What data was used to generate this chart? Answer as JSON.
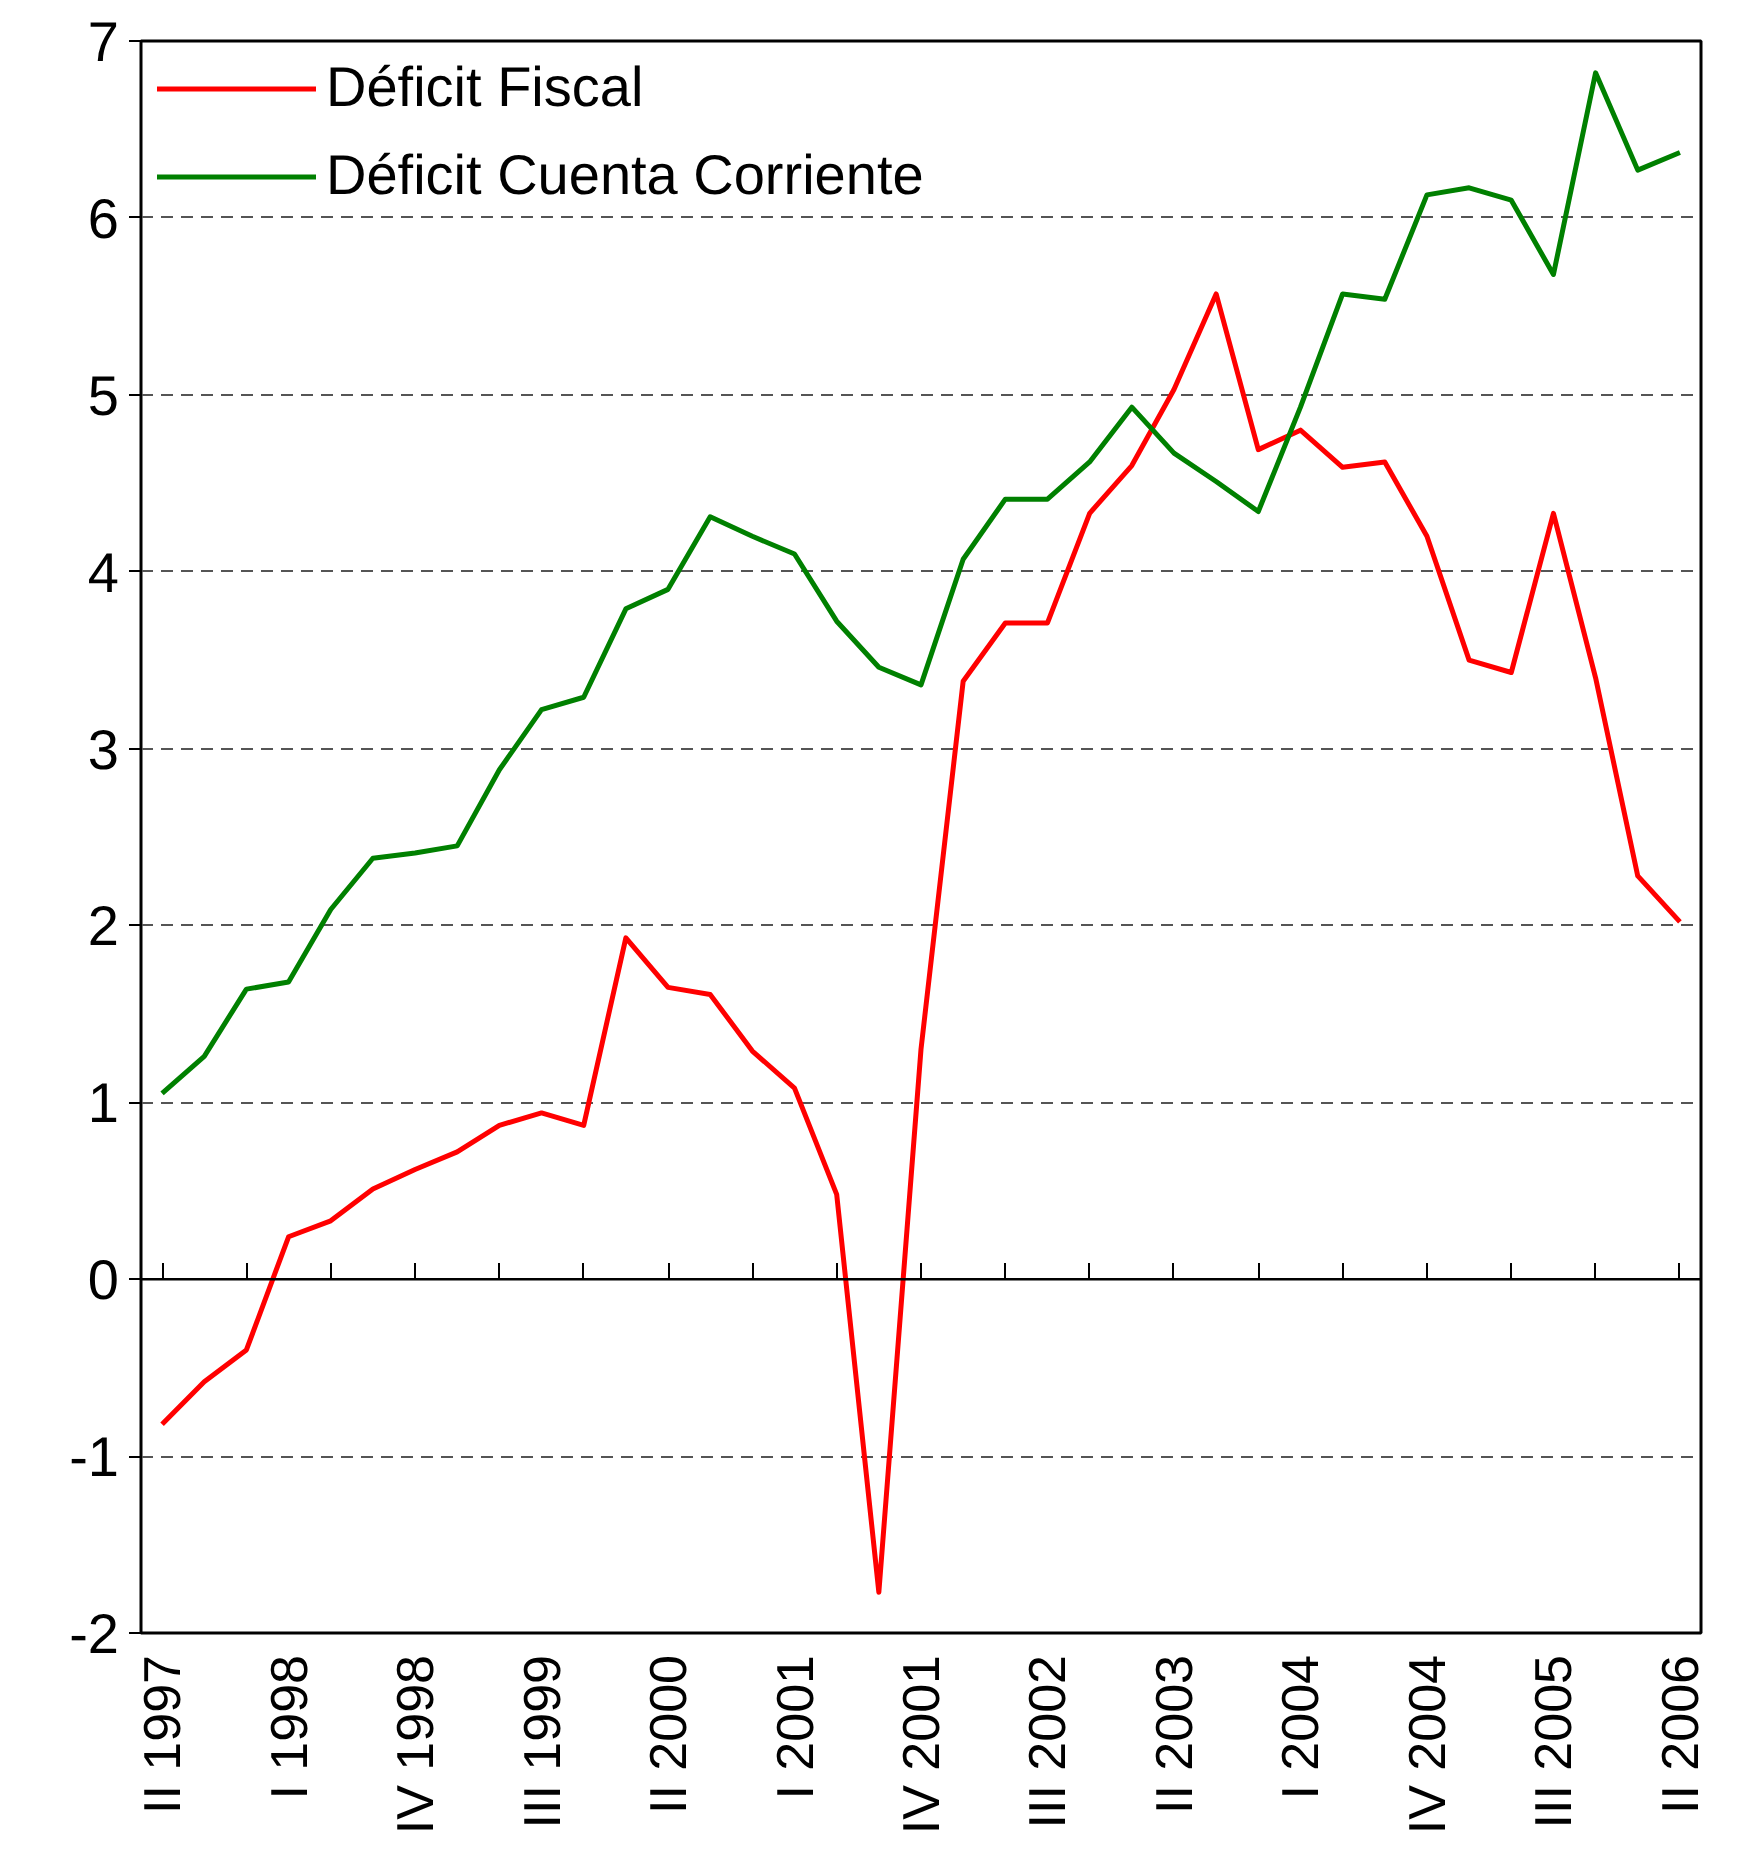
{
  "chart_data": {
    "type": "line",
    "categories": [
      "II 1997",
      null,
      null,
      "I 1998",
      null,
      null,
      "IV 1998",
      null,
      null,
      "III 1999",
      null,
      null,
      "II 2000",
      null,
      null,
      "I 2001",
      null,
      null,
      "IV 2001",
      null,
      null,
      "III 2002",
      null,
      null,
      "II 2003",
      null,
      null,
      "I 2004",
      null,
      null,
      "IV 2004",
      null,
      null,
      "III 2005",
      null,
      null,
      "II 2006"
    ],
    "series": [
      {
        "name": "Déficit Fiscal",
        "color": "#ff0000",
        "values": [
          -0.82,
          -0.58,
          -0.4,
          0.24,
          0.33,
          0.51,
          0.62,
          0.72,
          0.87,
          0.94,
          0.87,
          1.93,
          1.65,
          1.61,
          1.29,
          1.08,
          0.48,
          -1.77,
          1.3,
          3.38,
          3.71,
          3.71,
          4.33,
          4.6,
          5.03,
          5.57,
          4.69,
          4.8,
          4.59,
          4.62,
          4.2,
          3.5,
          3.43,
          4.33,
          3.4,
          2.28,
          2.02
        ]
      },
      {
        "name": "Déficit Cuenta Corriente",
        "color": "#008000",
        "values": [
          1.05,
          1.26,
          1.64,
          1.68,
          2.09,
          2.38,
          2.41,
          2.45,
          2.88,
          3.22,
          3.29,
          3.79,
          3.9,
          4.31,
          4.2,
          4.1,
          3.72,
          3.46,
          3.36,
          4.07,
          4.41,
          4.41,
          4.62,
          4.93,
          4.67,
          4.51,
          4.34,
          4.93,
          5.57,
          5.54,
          6.13,
          6.17,
          6.1,
          5.68,
          6.82,
          6.27,
          6.37
        ]
      }
    ],
    "ylim": [
      -2,
      7
    ],
    "yticks": [
      -2,
      -1,
      0,
      1,
      2,
      3,
      4,
      5,
      6,
      7
    ],
    "grid": "y",
    "legend": "top left",
    "marker": "none",
    "line_style": "solid"
  }
}
